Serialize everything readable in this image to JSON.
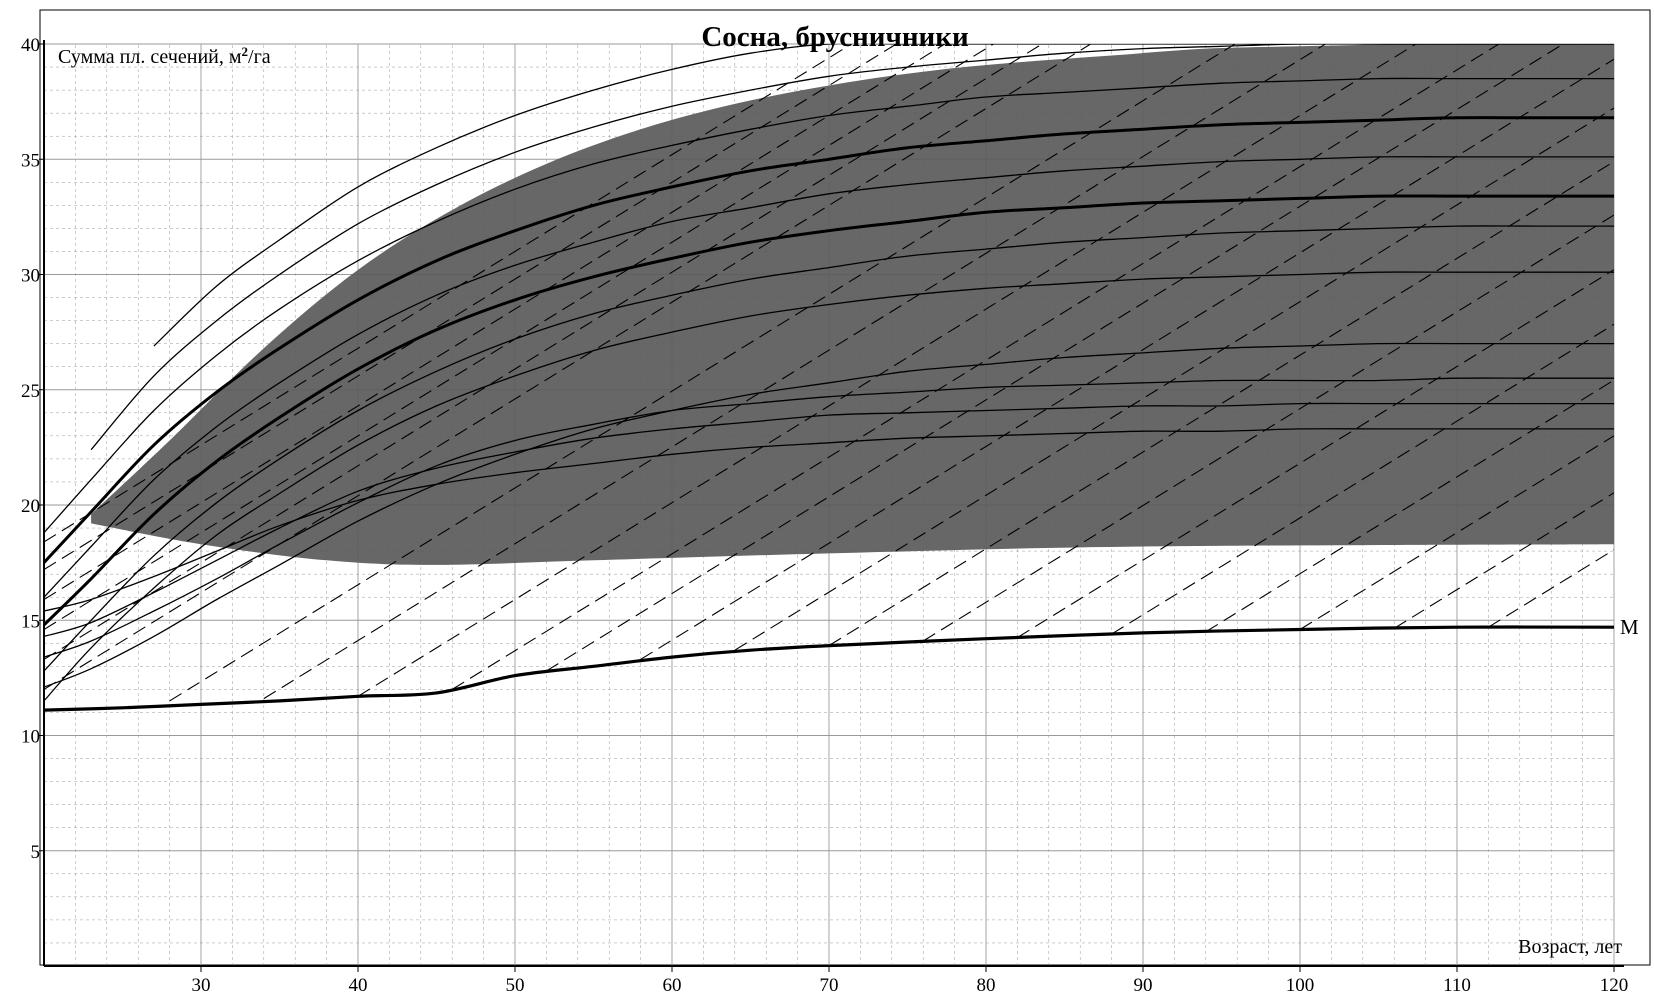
{
  "chart_data": {
    "type": "line",
    "title": "Сосна, брусничники",
    "ylabel_main": "Сумма пл. сечений, м",
    "ylabel_sup": "2",
    "ylabel_tail": "/га",
    "xlabel": "Возраст, лет",
    "xlim": [
      20,
      120
    ],
    "ylim": [
      0,
      40
    ],
    "xticks": [
      30,
      40,
      50,
      60,
      70,
      80,
      90,
      100,
      110,
      120
    ],
    "yticks": [
      5,
      10,
      15,
      20,
      25,
      30,
      35,
      40
    ],
    "grid": true,
    "colors": {
      "band": "#5a5a5a",
      "line": "#000000",
      "grid": "#9a9a9a"
    },
    "band": {
      "upper": {
        "x": [
          23,
          28,
          34,
          40,
          46,
          52,
          58,
          64,
          70,
          76,
          82,
          88,
          94,
          100,
          108,
          120
        ],
        "y": [
          19.6,
          22.8,
          26.8,
          30.2,
          32.8,
          34.8,
          36.3,
          37.4,
          38.2,
          38.8,
          39.2,
          39.5,
          39.8,
          39.9,
          40,
          40
        ]
      },
      "lower": {
        "x": [
          23,
          30,
          38,
          45,
          55,
          70,
          90,
          120
        ],
        "y": [
          19.2,
          18.3,
          17.6,
          17.4,
          17.6,
          17.9,
          18.2,
          18.3
        ]
      }
    },
    "m_curve": {
      "label": "M",
      "x": [
        20,
        25,
        30,
        35,
        40,
        45,
        50,
        55,
        60,
        65,
        70,
        80,
        90,
        100,
        110,
        120
      ],
      "y": [
        11.1,
        11.2,
        11.35,
        11.5,
        11.7,
        11.85,
        12.6,
        13.0,
        13.4,
        13.7,
        13.9,
        14.2,
        14.45,
        14.6,
        14.7,
        14.7
      ]
    },
    "growth_curves": {
      "x": [
        20,
        23,
        27,
        31,
        35,
        40,
        45,
        50,
        55,
        60,
        65,
        70,
        75,
        80,
        85,
        90,
        95,
        100,
        105,
        110,
        115,
        120
      ],
      "bold_indices": [
        2,
        4
      ],
      "series": [
        {
          "values": [
            11.5,
            13.8,
            16.4,
            18.7,
            20.5,
            22.6,
            24.3,
            25.6,
            26.7,
            27.5,
            28.2,
            28.7,
            29.1,
            29.4,
            29.6,
            29.8,
            29.9,
            30.0,
            30.1,
            30.1,
            30.1,
            30.1
          ]
        },
        {
          "values": [
            12.8,
            15.0,
            17.8,
            20.1,
            22.0,
            24.1,
            25.8,
            27.2,
            28.3,
            29.1,
            29.8,
            30.3,
            30.8,
            31.1,
            31.4,
            31.6,
            31.8,
            31.9,
            32.0,
            32.1,
            32.1,
            32.1
          ]
        },
        {
          "values": [
            14.8,
            16.8,
            19.6,
            21.9,
            23.8,
            25.9,
            27.6,
            28.9,
            29.9,
            30.7,
            31.4,
            31.9,
            32.3,
            32.7,
            32.9,
            33.1,
            33.2,
            33.3,
            33.4,
            33.4,
            33.4,
            33.4
          ]
        },
        {
          "values": [
            16.0,
            18.2,
            21.1,
            23.4,
            25.3,
            27.4,
            29.1,
            30.4,
            31.4,
            32.3,
            32.9,
            33.5,
            33.9,
            34.2,
            34.5,
            34.7,
            34.9,
            35.0,
            35.1,
            35.1,
            35.1,
            35.1
          ]
        },
        {
          "values": [
            17.5,
            19.7,
            22.6,
            24.9,
            26.8,
            28.9,
            30.6,
            31.9,
            33.0,
            33.8,
            34.5,
            35.0,
            35.5,
            35.8,
            36.1,
            36.3,
            36.5,
            36.6,
            36.7,
            36.8,
            36.8,
            36.8
          ]
        },
        {
          "values": [
            18.8,
            21.1,
            24.1,
            26.5,
            28.5,
            30.6,
            32.3,
            33.7,
            34.8,
            35.6,
            36.3,
            36.9,
            37.3,
            37.7,
            37.9,
            38.1,
            38.3,
            38.4,
            38.5,
            38.5,
            38.5,
            38.5
          ]
        },
        {
          "values": [
            null,
            22.4,
            25.6,
            28.0,
            30.0,
            32.2,
            33.9,
            35.3,
            36.4,
            37.3,
            38.0,
            38.6,
            39.0,
            39.3,
            39.6,
            39.8,
            39.9,
            40.0,
            40.0,
            40.0,
            40.0,
            40.0
          ]
        },
        {
          "values": [
            null,
            null,
            26.9,
            29.5,
            31.5,
            33.8,
            35.5,
            36.9,
            38.0,
            38.9,
            39.6,
            40.0,
            40.0,
            40.0,
            40.0,
            40.0,
            40.0,
            40.0,
            40.0,
            40.0,
            40.0,
            40.0
          ]
        },
        {
          "values": [
            12.1,
            12.9,
            14.3,
            15.9,
            17.4,
            19.3,
            20.9,
            22.2,
            23.3,
            24.1,
            24.8,
            25.3,
            25.8,
            26.1,
            26.4,
            26.6,
            26.8,
            26.9,
            27.0,
            27.0,
            27.0,
            27.0
          ]
        },
        {
          "values": [
            13.4,
            14.1,
            15.4,
            16.8,
            18.3,
            20.1,
            21.7,
            22.8,
            23.5,
            24.1,
            24.4,
            24.7,
            24.9,
            25.1,
            25.2,
            25.3,
            25.4,
            25.4,
            25.4,
            25.5,
            25.5,
            25.5
          ]
        },
        {
          "values": [
            14.3,
            14.9,
            16.2,
            17.6,
            19.0,
            20.6,
            21.6,
            22.3,
            22.9,
            23.3,
            23.6,
            23.9,
            24.0,
            24.1,
            24.2,
            24.3,
            24.3,
            24.4,
            24.4,
            24.4,
            24.4,
            24.4
          ]
        },
        {
          "values": [
            15.4,
            15.9,
            16.9,
            18.0,
            19.1,
            20.2,
            20.9,
            21.4,
            21.8,
            22.2,
            22.5,
            22.7,
            22.9,
            23.0,
            23.1,
            23.2,
            23.2,
            23.3,
            23.3,
            23.3,
            23.3,
            23.3
          ]
        }
      ]
    },
    "dashed_lines": {
      "slope_note": "parallel dashed diagonal lines (stocking reference lines)",
      "starts": [
        {
          "x": 20,
          "y": 12.0
        },
        {
          "x": 20,
          "y": 13.3
        },
        {
          "x": 20,
          "y": 14.6
        },
        {
          "x": 20,
          "y": 15.9
        },
        {
          "x": 20,
          "y": 17.2
        },
        {
          "x": 20,
          "y": 18.4
        },
        {
          "x": 28,
          "y": 11.5
        },
        {
          "x": 34,
          "y": 11.6
        },
        {
          "x": 40,
          "y": 11.7
        },
        {
          "x": 46,
          "y": 12.0
        },
        {
          "x": 52,
          "y": 12.8
        },
        {
          "x": 58,
          "y": 13.3
        },
        {
          "x": 64,
          "y": 13.7
        },
        {
          "x": 70,
          "y": 13.9
        },
        {
          "x": 76,
          "y": 14.1
        },
        {
          "x": 82,
          "y": 14.25
        },
        {
          "x": 88,
          "y": 14.4
        },
        {
          "x": 94,
          "y": 14.5
        },
        {
          "x": 100,
          "y": 14.6
        },
        {
          "x": 106,
          "y": 14.65
        },
        {
          "x": 112,
          "y": 14.7
        }
      ],
      "slope": 0.42
    }
  }
}
